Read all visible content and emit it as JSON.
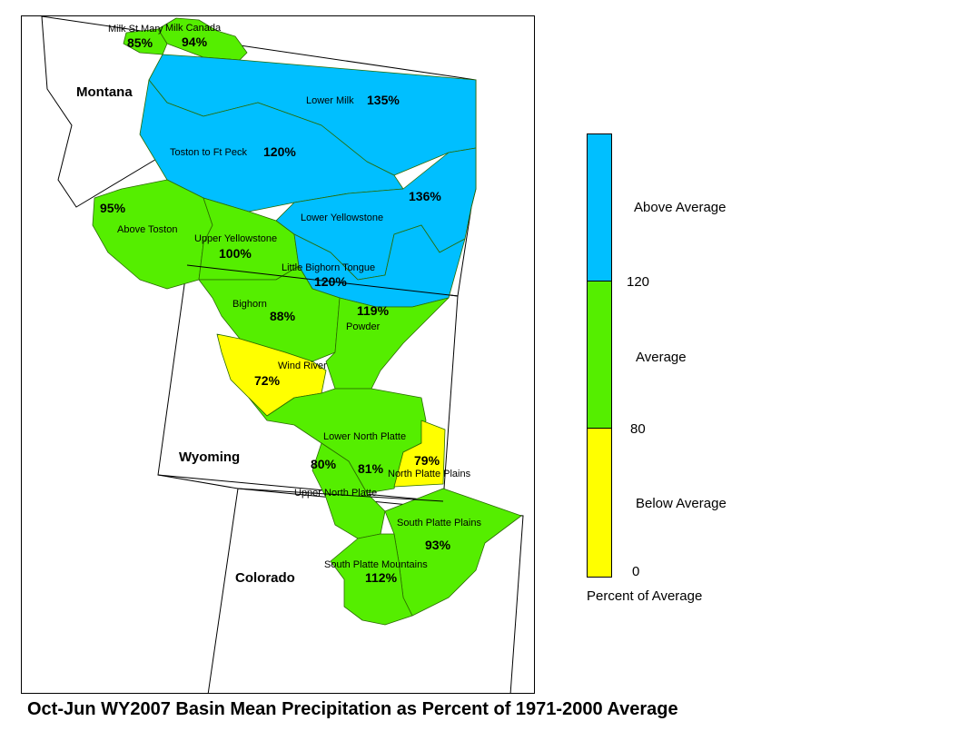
{
  "colors": {
    "above": "#00bfff",
    "average": "#55ee00",
    "below": "#ffff00",
    "border": "#000000"
  },
  "map": {
    "states": [
      "Montana",
      "Wyoming",
      "Colorado"
    ],
    "basins": [
      {
        "name": "Milk St Mary",
        "percent": "85%",
        "category": "average"
      },
      {
        "name": "Milk Canada",
        "percent": "94%",
        "category": "average"
      },
      {
        "name": "Lower Milk",
        "percent": "135%",
        "category": "above"
      },
      {
        "name": "Toston to Ft Peck",
        "percent": "120%",
        "category": "above"
      },
      {
        "name": "Lower Yellowstone",
        "percent": "136%",
        "category": "above"
      },
      {
        "name": "Above Toston",
        "percent": "95%",
        "category": "average"
      },
      {
        "name": "Upper Yellowstone",
        "percent": "100%",
        "category": "average"
      },
      {
        "name": "Little Bighorn Tongue",
        "percent": "120%",
        "category": "above"
      },
      {
        "name": "Bighorn",
        "percent": "88%",
        "category": "average"
      },
      {
        "name": "Powder",
        "percent": "119%",
        "category": "average"
      },
      {
        "name": "Wind River",
        "percent": "72%",
        "category": "below"
      },
      {
        "name": "Lower North Platte",
        "percent": "81%",
        "category": "average"
      },
      {
        "name": "North Platte Plains",
        "percent": "79%",
        "category": "below"
      },
      {
        "name": "Upper North Platte",
        "percent": "80%",
        "category": "average"
      },
      {
        "name": "South Platte Plains",
        "percent": "93%",
        "category": "average"
      },
      {
        "name": "South Platte Mountains",
        "percent": "112%",
        "category": "average"
      }
    ]
  },
  "legend": {
    "title": "Percent of Average",
    "classes": [
      {
        "label": "Above Average",
        "category": "above"
      },
      {
        "label": "Average",
        "category": "average"
      },
      {
        "label": "Below Average",
        "category": "below"
      }
    ],
    "breaks": [
      "120",
      "80",
      "0"
    ]
  },
  "caption": "Oct-Jun WY2007 Basin Mean Precipitation as Percent of 1971-2000 Average"
}
